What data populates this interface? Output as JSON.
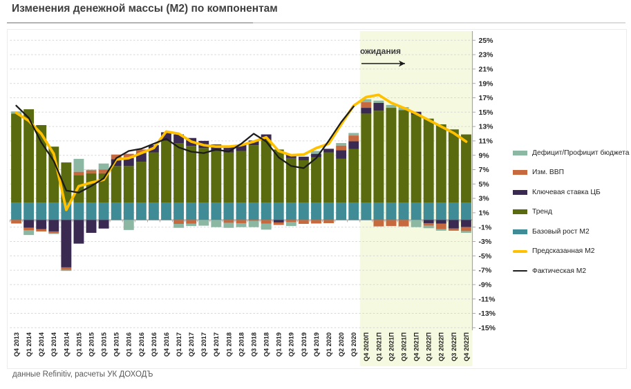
{
  "title": "Изменения денежной массы (М2) по компонентам",
  "footer": "данные Refinitiv, расчеты УК ДОХОДЪ",
  "annotation": {
    "label": "ожидания"
  },
  "chart_data": {
    "type": "bar",
    "subtype": "stacked-bars-with-lines",
    "grid": true,
    "legend_position": "right",
    "ylim": [
      -15,
      25
    ],
    "ytick_step": 2,
    "ytick_labels": [
      "25%",
      "23%",
      "21%",
      "19%",
      "17%",
      "15%",
      "13%",
      "11%",
      "9%",
      "7%",
      "5%",
      "3%",
      "1%",
      "-1%",
      "-3%",
      "-5%",
      "-7%",
      "-9%",
      "-11%",
      "-13%",
      "-15%"
    ],
    "forecast_start_index": 28,
    "forecast_band_color": "#F5F9E0",
    "categories": [
      "Q4 2013",
      "Q1 2014",
      "Q2 2014",
      "Q3 2014",
      "Q4 2014",
      "Q1 2015",
      "Q2 2015",
      "Q3 2015",
      "Q4 2015",
      "Q1 2016",
      "Q2 2016",
      "Q3 2016",
      "Q4 2016",
      "Q1 2017",
      "Q2 2017",
      "Q3 2017",
      "Q4 2017",
      "Q1 2018",
      "Q2 2018",
      "Q3 2018",
      "Q4 2018",
      "Q1 2019",
      "Q2 2019",
      "Q3 2019",
      "Q4 2019",
      "Q1 2020",
      "Q2 2020",
      "Q3 2020",
      "Q4 2020П",
      "Q1 2021П",
      "Q2 2021П",
      "Q3 2021П",
      "Q4 2021П",
      "Q1 2022П",
      "Q2 2022П",
      "Q3 2022П",
      "Q4 2022П"
    ],
    "series": [
      {
        "id": "budget",
        "name": "Дефицит/Профицит бюджета",
        "type": "bar",
        "color": "#8CB7A3",
        "values": [
          0.3,
          -0.65,
          0,
          -0.1,
          -0.15,
          1.8,
          0.1,
          0.85,
          0,
          -1.4,
          0,
          0,
          0,
          -0.55,
          -0.35,
          -0.8,
          -1.0,
          -0.7,
          -0.55,
          -0.85,
          -0.85,
          0,
          -0.55,
          0,
          0.4,
          0,
          0.35,
          0.35,
          0.4,
          0.3,
          0.4,
          0.4,
          -1.0,
          -0.35,
          -0.2,
          0,
          -0.25
        ]
      },
      {
        "id": "gdp",
        "name": "Изм. ВВП",
        "type": "bar",
        "color": "#C7693F",
        "values": [
          -0.5,
          -0.35,
          -0.3,
          -0.25,
          -0.35,
          0.45,
          0.4,
          0.5,
          0.65,
          0.6,
          0.5,
          0,
          0,
          -0.55,
          -0.5,
          0,
          0,
          -0.4,
          -0.45,
          -0.15,
          -0.5,
          -0.35,
          -0.3,
          -0.55,
          -0.5,
          -0.45,
          0.65,
          0.8,
          0.8,
          -0.9,
          -0.85,
          -0.9,
          0,
          -0.35,
          -0.8,
          -0.3,
          -0.55
        ]
      },
      {
        "id": "rate",
        "name": "Ключевая ставка ЦБ",
        "type": "bar",
        "color": "#3A2A52",
        "values": [
          0,
          -1.1,
          -1.3,
          -1.6,
          -6.6,
          -3.3,
          -1.8,
          -1.2,
          0.95,
          1.1,
          1.2,
          1.0,
          1.2,
          1.2,
          1.1,
          1.0,
          0.9,
          0.9,
          0.9,
          0.65,
          0.8,
          -0.35,
          0.5,
          0.5,
          0.5,
          0.5,
          1.2,
          1.1,
          0.8,
          1.1,
          0,
          0,
          0.4,
          -0.45,
          -0.5,
          -1.2,
          -1.0
        ]
      },
      {
        "id": "trend",
        "name": "Тренд",
        "type": "bar",
        "color": "#596B0E",
        "values": [
          12.4,
          13.0,
          10.8,
          7.8,
          5.6,
          3.85,
          4.1,
          4.1,
          5.1,
          5.1,
          5.7,
          7.0,
          8.6,
          8.3,
          7.9,
          7.6,
          7.2,
          7.0,
          7.2,
          8.0,
          8.7,
          7.4,
          6.2,
          5.9,
          6.3,
          7.0,
          6.1,
          7.45,
          12.4,
          12.8,
          13.2,
          12.9,
          12.25,
          11.7,
          10.9,
          10.2,
          9.5
        ]
      },
      {
        "id": "base",
        "name": "Базовый рост М2",
        "type": "bar",
        "color": "#3F8B96",
        "values": [
          2.4,
          2.4,
          2.4,
          2.4,
          2.4,
          2.4,
          2.4,
          2.4,
          2.4,
          2.4,
          2.4,
          2.4,
          2.4,
          2.4,
          2.4,
          2.4,
          2.4,
          2.4,
          2.4,
          2.4,
          2.4,
          2.4,
          2.4,
          2.4,
          2.4,
          2.4,
          2.4,
          2.4,
          2.4,
          2.4,
          2.4,
          2.4,
          2.4,
          2.4,
          2.4,
          2.4,
          2.4
        ]
      },
      {
        "id": "predicted",
        "name": "Предсказанная М2",
        "type": "line",
        "color": "#FFC000",
        "values": [
          14.9,
          13.8,
          12.0,
          9.2,
          1.4,
          4.7,
          5.2,
          5.6,
          8.4,
          8.6,
          9.3,
          10.0,
          12.3,
          12.0,
          10.9,
          10.4,
          10.2,
          10.2,
          10.4,
          10.9,
          11.5,
          9.6,
          9.0,
          9.1,
          10.0,
          10.6,
          13.3,
          15.9,
          17.1,
          17.4,
          16.3,
          15.6,
          14.8,
          13.9,
          13.0,
          12.1,
          10.9
        ]
      },
      {
        "id": "actual",
        "name": "Фактическая М2",
        "type": "line",
        "color": "#1C1C1C",
        "values": [
          15.9,
          14.2,
          10.8,
          8.2,
          4.1,
          3.8,
          4.7,
          5.8,
          8.6,
          9.6,
          9.9,
          10.6,
          11.3,
          10.1,
          9.5,
          9.3,
          9.8,
          9.5,
          10.6,
          12.0,
          10.9,
          8.7,
          7.5,
          7.2,
          8.6,
          11.0,
          13.6,
          15.8,
          null,
          null,
          null,
          null,
          null,
          null,
          null,
          null,
          null
        ]
      }
    ]
  }
}
